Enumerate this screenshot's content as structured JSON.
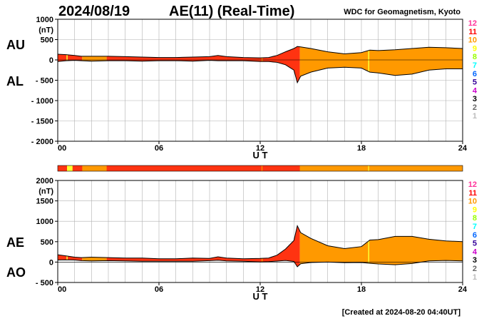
{
  "header": {
    "date": "2024/08/19",
    "index": "AE(11) (Real-Time)",
    "source": "WDC for Geomagnetism, Kyoto"
  },
  "footer": {
    "created": "[Created at 2024-08-20 04:40UT]"
  },
  "panels": {
    "top": {
      "upper_label": "AU",
      "lower_label": "AL",
      "unit": "(nT)",
      "xlabel": "U T"
    },
    "bottom": {
      "upper_label": "AE",
      "lower_label": "AO",
      "unit": "(nT)",
      "xlabel": "U T"
    }
  },
  "colors": {
    "station_legend": [
      "#ff3399",
      "#ff0000",
      "#ff9900",
      "#ffff00",
      "#99ff00",
      "#00ffff",
      "#0066ff",
      "#330099",
      "#cc00cc",
      "#000000",
      "#666666",
      "#bbbbbb"
    ],
    "count_10": "#ff9900",
    "count_11": "#ff3311",
    "count_9": "#ffff33"
  },
  "chart_data": [
    {
      "type": "area",
      "title": "AU / AL",
      "ylabel": "(nT)",
      "xlabel": "U T",
      "xlim": [
        0,
        24
      ],
      "ylim": [
        -2000,
        1000
      ],
      "yticks": [
        1000,
        500,
        0,
        -500,
        -1000,
        -1500,
        -2000
      ],
      "ytick_labels": [
        "1000",
        "500",
        "0",
        "- 500",
        "- 1000",
        "- 1500",
        "- 2000"
      ],
      "xticks": [
        0,
        6,
        12,
        18,
        24
      ],
      "xtick_labels": [
        "00",
        "06",
        "12",
        "18",
        "24"
      ],
      "grid": true,
      "x": [
        0,
        0.5,
        1,
        1.4,
        2,
        3,
        4,
        5,
        6,
        7,
        8,
        9,
        9.5,
        10,
        11,
        12,
        12.5,
        13,
        13.5,
        14,
        14.2,
        14.4,
        15,
        16,
        17,
        18,
        18.5,
        19,
        20,
        21,
        22,
        23,
        24
      ],
      "series": [
        {
          "name": "AU",
          "values": [
            140,
            130,
            110,
            90,
            90,
            90,
            80,
            70,
            60,
            60,
            70,
            80,
            110,
            80,
            60,
            50,
            60,
            110,
            200,
            280,
            330,
            320,
            280,
            200,
            150,
            180,
            240,
            230,
            250,
            280,
            310,
            300,
            280
          ]
        },
        {
          "name": "AL",
          "values": [
            -40,
            -20,
            -10,
            -20,
            -30,
            -20,
            -20,
            -30,
            -20,
            -20,
            -30,
            -10,
            -20,
            -20,
            -20,
            -40,
            -40,
            -60,
            -120,
            -250,
            -560,
            -400,
            -300,
            -200,
            -180,
            -200,
            -300,
            -320,
            -380,
            -350,
            -250,
            -220,
            -220
          ]
        }
      ],
      "station_legend": [
        "12",
        "11",
        "10",
        "9",
        "8",
        "7",
        "6",
        "5",
        "4",
        "3",
        "2",
        "1"
      ]
    },
    {
      "type": "area",
      "title": "AE / AO",
      "ylabel": "(nT)",
      "xlabel": "U T",
      "xlim": [
        0,
        24
      ],
      "ylim": [
        -500,
        2000
      ],
      "yticks": [
        2000,
        1500,
        1000,
        500,
        0,
        -500
      ],
      "ytick_labels": [
        "2000",
        "1500",
        "1000",
        "500",
        "0",
        "- 500"
      ],
      "xticks": [
        0,
        6,
        12,
        18,
        24
      ],
      "xtick_labels": [
        "00",
        "06",
        "12",
        "18",
        "24"
      ],
      "grid": true,
      "x": [
        0,
        0.5,
        1,
        1.4,
        2,
        3,
        4,
        5,
        6,
        7,
        8,
        9,
        9.5,
        10,
        11,
        12,
        12.5,
        13,
        13.5,
        14,
        14.2,
        14.4,
        15,
        16,
        17,
        18,
        18.5,
        19,
        20,
        21,
        22,
        23,
        24
      ],
      "series": [
        {
          "name": "AE",
          "values": [
            180,
            150,
            120,
            110,
            120,
            110,
            100,
            100,
            80,
            80,
            100,
            90,
            130,
            100,
            80,
            90,
            100,
            170,
            320,
            530,
            890,
            720,
            580,
            400,
            330,
            380,
            540,
            550,
            630,
            630,
            560,
            520,
            500
          ]
        },
        {
          "name": "AO",
          "values": [
            50,
            55,
            50,
            35,
            30,
            35,
            30,
            20,
            20,
            20,
            20,
            35,
            45,
            30,
            20,
            5,
            10,
            25,
            40,
            15,
            -115,
            -40,
            -10,
            0,
            -15,
            -10,
            -30,
            -45,
            -65,
            -35,
            30,
            40,
            30
          ]
        }
      ],
      "station_legend": [
        "12",
        "11",
        "10",
        "9",
        "8",
        "7",
        "6",
        "5",
        "4",
        "3",
        "2",
        "1"
      ]
    }
  ]
}
